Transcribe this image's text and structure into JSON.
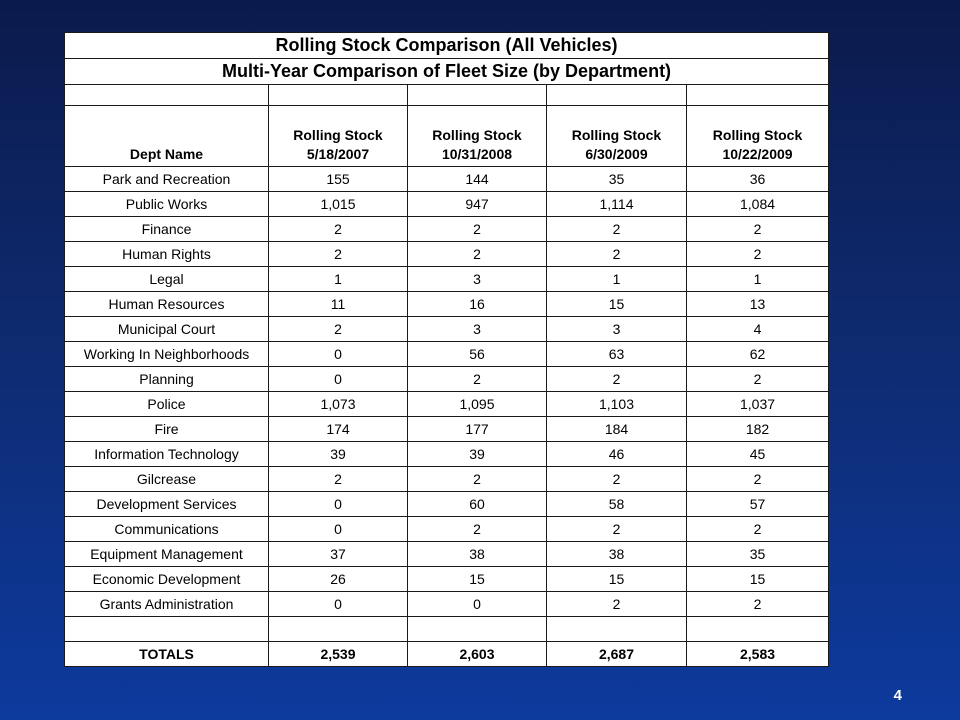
{
  "title": "Rolling Stock Comparison (All Vehicles)",
  "subtitle": "Multi-Year Comparison of Fleet Size (by Department)",
  "columns": {
    "dept": "Dept Name",
    "headers": [
      {
        "line1": "Rolling Stock",
        "line2": "5/18/2007"
      },
      {
        "line1": "Rolling Stock",
        "line2": "10/31/2008"
      },
      {
        "line1": "Rolling Stock",
        "line2": "6/30/2009"
      },
      {
        "line1": "Rolling Stock",
        "line2": "10/22/2009"
      }
    ]
  },
  "rows": [
    {
      "name": "Park and Recreation",
      "values": [
        "155",
        "144",
        "35",
        "36"
      ]
    },
    {
      "name": "Public Works",
      "values": [
        "1,015",
        "947",
        "1,114",
        "1,084"
      ]
    },
    {
      "name": "Finance",
      "values": [
        "2",
        "2",
        "2",
        "2"
      ]
    },
    {
      "name": "Human Rights",
      "values": [
        "2",
        "2",
        "2",
        "2"
      ]
    },
    {
      "name": "Legal",
      "values": [
        "1",
        "3",
        "1",
        "1"
      ]
    },
    {
      "name": "Human Resources",
      "values": [
        "11",
        "16",
        "15",
        "13"
      ]
    },
    {
      "name": "Municipal Court",
      "values": [
        "2",
        "3",
        "3",
        "4"
      ]
    },
    {
      "name": "Working In Neighborhoods",
      "values": [
        "0",
        "56",
        "63",
        "62"
      ]
    },
    {
      "name": "Planning",
      "values": [
        "0",
        "2",
        "2",
        "2"
      ]
    },
    {
      "name": "Police",
      "values": [
        "1,073",
        "1,095",
        "1,103",
        "1,037"
      ]
    },
    {
      "name": "Fire",
      "values": [
        "174",
        "177",
        "184",
        "182"
      ]
    },
    {
      "name": "Information Technology",
      "values": [
        "39",
        "39",
        "46",
        "45"
      ]
    },
    {
      "name": "Gilcrease",
      "values": [
        "2",
        "2",
        "2",
        "2"
      ]
    },
    {
      "name": "Development Services",
      "values": [
        "0",
        "60",
        "58",
        "57"
      ]
    },
    {
      "name": "Communications",
      "values": [
        "0",
        "2",
        "2",
        "2"
      ]
    },
    {
      "name": "Equipment Management",
      "values": [
        "37",
        "38",
        "38",
        "35"
      ]
    },
    {
      "name": "Economic Development",
      "values": [
        "26",
        "15",
        "15",
        "15"
      ]
    },
    {
      "name": "Grants Administration",
      "values": [
        "0",
        "0",
        "2",
        "2"
      ]
    }
  ],
  "totals": {
    "label": "TOTALS",
    "values": [
      "2,539",
      "2,603",
      "2,687",
      "2,583"
    ]
  },
  "page_number": "4"
}
